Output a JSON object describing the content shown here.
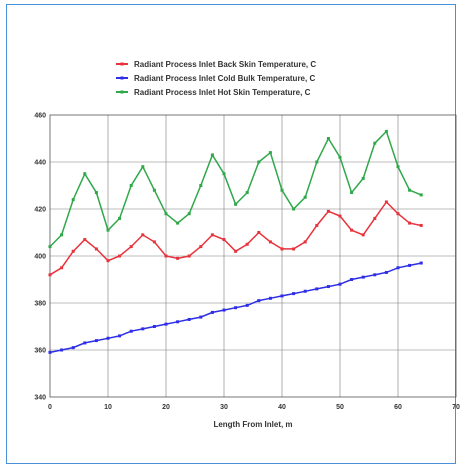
{
  "chart_data": {
    "type": "line",
    "title": "",
    "xlabel": "Length From Inlet, m",
    "ylabel": "",
    "xlim": [
      0,
      70
    ],
    "ylim": [
      340,
      460
    ],
    "x_ticks": [
      0,
      10,
      20,
      30,
      40,
      50,
      60,
      70
    ],
    "y_ticks": [
      340,
      360,
      380,
      400,
      420,
      440,
      460
    ],
    "grid": true,
    "legend_position": "top",
    "x": [
      0,
      2,
      4,
      6,
      8,
      10,
      12,
      14,
      16,
      18,
      20,
      22,
      24,
      26,
      28,
      30,
      32,
      34,
      36,
      38,
      40,
      42,
      44,
      46,
      48,
      50,
      52,
      54,
      56,
      58,
      60,
      62,
      64
    ],
    "series": [
      {
        "name": "Radiant Process Inlet Back Skin Temperature, C",
        "color": "#e8323c",
        "values": [
          392,
          395,
          402,
          407,
          403,
          398,
          400,
          404,
          409,
          406,
          400,
          399,
          400,
          404,
          409,
          407,
          402,
          405,
          410,
          406,
          403,
          403,
          406,
          413,
          419,
          417,
          411,
          409,
          416,
          423,
          418,
          414,
          413
        ]
      },
      {
        "name": "Radiant Process Inlet Cold Bulk Temperature, C",
        "color": "#2e2ee6",
        "values": [
          359,
          360,
          361,
          363,
          364,
          365,
          366,
          368,
          369,
          370,
          371,
          372,
          373,
          374,
          376,
          377,
          378,
          379,
          381,
          382,
          383,
          384,
          385,
          386,
          387,
          388,
          390,
          391,
          392,
          393,
          395,
          396,
          397
        ]
      },
      {
        "name": "Radiant Process Inlet Hot Skin Temperature, C",
        "color": "#2fa84a",
        "values": [
          404,
          409,
          424,
          435,
          427,
          411,
          416,
          430,
          438,
          428,
          418,
          414,
          418,
          430,
          443,
          435,
          422,
          427,
          440,
          444,
          428,
          420,
          425,
          440,
          450,
          442,
          427,
          433,
          448,
          453,
          438,
          428,
          426
        ]
      }
    ]
  }
}
